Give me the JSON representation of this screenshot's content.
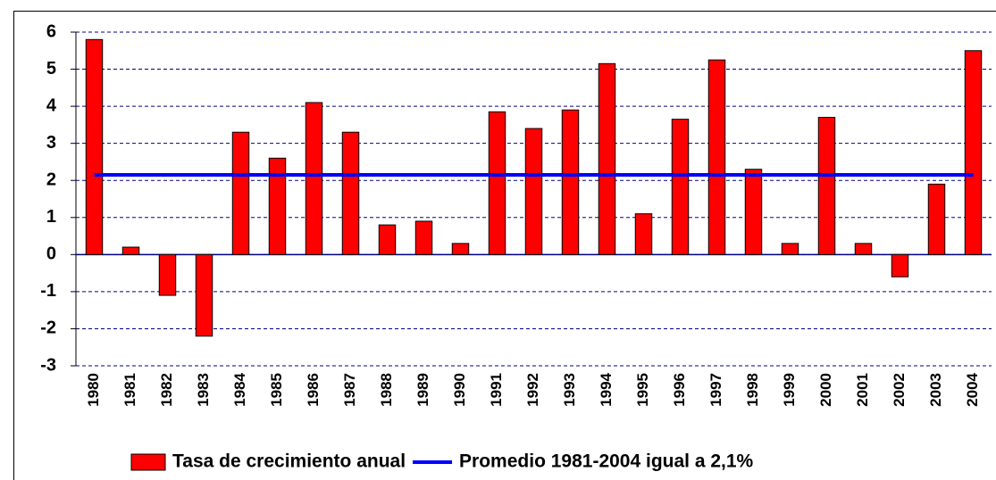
{
  "chart_data": {
    "type": "bar",
    "categories": [
      "1980",
      "1981",
      "1982",
      "1983",
      "1984",
      "1985",
      "1986",
      "1987",
      "1988",
      "1989",
      "1990",
      "1991",
      "1992",
      "1993",
      "1994",
      "1995",
      "1996",
      "1997",
      "1998",
      "1999",
      "2000",
      "2001",
      "2002",
      "2003",
      "2004"
    ],
    "series": [
      {
        "name": "Tasa de crecimiento anual",
        "type": "bar",
        "color": "#ff0000",
        "values": [
          5.8,
          0.2,
          -1.1,
          -2.2,
          3.3,
          2.6,
          4.1,
          3.3,
          0.8,
          0.9,
          0.3,
          3.85,
          3.4,
          3.9,
          5.15,
          1.1,
          3.65,
          5.25,
          2.3,
          0.3,
          3.7,
          0.3,
          -0.6,
          1.9,
          5.5
        ]
      },
      {
        "name": "Promedio 1981-2004 igual a 2,1%",
        "type": "line",
        "color": "#0000ff",
        "values": [
          2.15,
          2.15,
          2.15,
          2.15,
          2.15,
          2.15,
          2.15,
          2.15,
          2.15,
          2.15,
          2.15,
          2.15,
          2.15,
          2.15,
          2.15,
          2.15,
          2.15,
          2.15,
          2.15,
          2.15,
          2.15,
          2.15,
          2.15,
          2.15,
          2.15
        ]
      }
    ],
    "ylim": [
      -3,
      6
    ],
    "yticks": [
      -3,
      -2,
      -1,
      0,
      1,
      2,
      3,
      4,
      5,
      6
    ],
    "grid": true,
    "legend": "bottom"
  }
}
